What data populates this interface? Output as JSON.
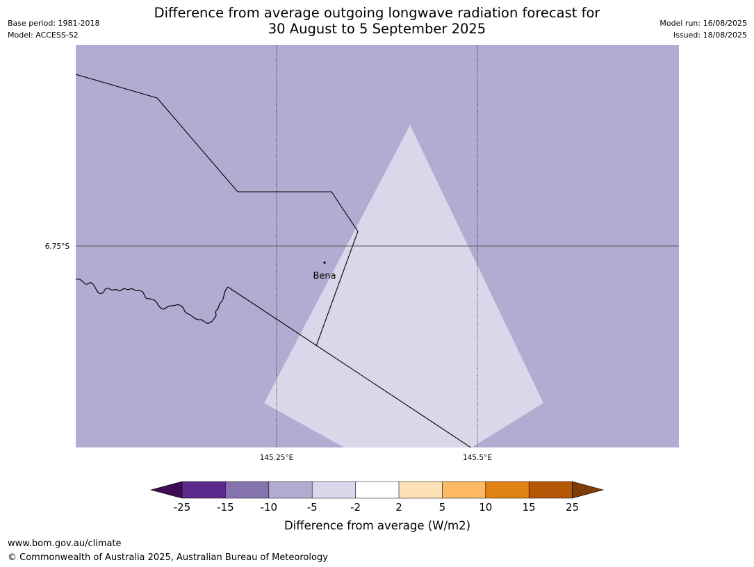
{
  "title": {
    "line1": "Difference from average outgoing longwave radiation forecast for",
    "line2": "30 August to 5 September 2025"
  },
  "meta_left": {
    "base_period": "Base period: 1981-2018",
    "model": "Model: ACCESS-S2"
  },
  "meta_right": {
    "model_run": "Model run: 16/08/2025",
    "issued": "Issued: 18/08/2025"
  },
  "map": {
    "background_color": "#b2abd2",
    "patch_color": "#d8d8ea",
    "lat_label": "6.75°S",
    "lon_labels": [
      "145.25°E",
      "145.5°E"
    ],
    "place": {
      "name": "Bena"
    }
  },
  "colorbar": {
    "title": "Difference from average (W/m2)",
    "ticks": [
      "-25",
      "-15",
      "-10",
      "-5",
      "-2",
      "2",
      "5",
      "10",
      "15",
      "25"
    ],
    "colors": [
      "#3f0d57",
      "#5c2a8d",
      "#8573ad",
      "#b2abd2",
      "#d8d8ea",
      "#ffffff",
      "#fee0b6",
      "#fdb863",
      "#e08214",
      "#b35806",
      "#7f3b08"
    ]
  },
  "footer": {
    "url": "www.bom.gov.au/climate",
    "copyright": "© Commonwealth of Australia 2025, Australian Bureau of Meteorology"
  }
}
